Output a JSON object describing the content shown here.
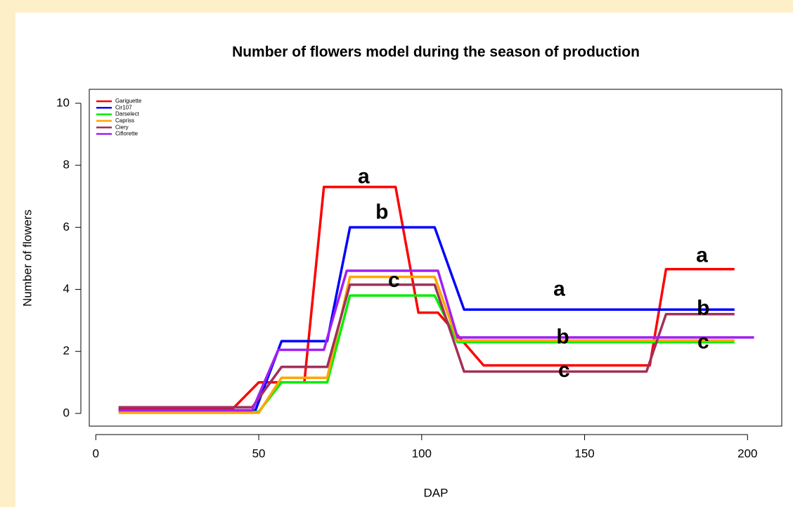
{
  "chart_data": {
    "type": "line",
    "title": "Number of flowers model during the season of production",
    "x_label": "DAP",
    "y_label": "Number of flowers",
    "xlim": [
      -2,
      210.5
    ],
    "ylim": [
      -0.41,
      10.45
    ],
    "xticks": [
      0,
      50,
      100,
      150,
      200
    ],
    "yticks": [
      0,
      2,
      4,
      6,
      8,
      10
    ],
    "legend": "top-left",
    "series": [
      {
        "name": "Gariguette",
        "color": "#ff0000",
        "x": [
          7,
          42,
          50,
          64,
          70,
          92,
          99,
          105,
          119,
          170,
          175,
          196
        ],
        "values": [
          0.15,
          0.15,
          1.0,
          1.0,
          7.3,
          7.3,
          3.25,
          3.25,
          1.55,
          1.55,
          4.65,
          4.65
        ]
      },
      {
        "name": "Cir107",
        "color": "#0000ff",
        "x": [
          7,
          49,
          57,
          71,
          78,
          104,
          113,
          196
        ],
        "values": [
          0.1,
          0.1,
          2.33,
          2.33,
          6.0,
          6.0,
          3.35,
          3.35
        ]
      },
      {
        "name": "Darselect",
        "color": "#00ee00",
        "x": [
          7,
          50,
          57,
          71,
          78,
          104,
          111,
          196
        ],
        "values": [
          0.05,
          0.05,
          1.0,
          1.0,
          3.8,
          3.8,
          2.3,
          2.3
        ]
      },
      {
        "name": "Capriss",
        "color": "#ffa500",
        "x": [
          7,
          50,
          57,
          71,
          78,
          104,
          111,
          196
        ],
        "values": [
          0.02,
          0.02,
          1.15,
          1.15,
          4.4,
          4.4,
          2.35,
          2.35
        ]
      },
      {
        "name": "Ciery",
        "color": "#a0305a",
        "x": [
          7,
          48,
          57,
          71,
          78,
          104,
          113,
          169,
          175,
          196
        ],
        "values": [
          0.2,
          0.2,
          1.5,
          1.5,
          4.15,
          4.15,
          1.35,
          1.35,
          3.2,
          3.2
        ]
      },
      {
        "name": "Ciflorette",
        "color": "#a020f0",
        "x": [
          7,
          48,
          56,
          70,
          77,
          105,
          111,
          202
        ],
        "values": [
          0.1,
          0.1,
          2.05,
          2.05,
          4.6,
          4.6,
          2.45,
          2.45
        ]
      }
    ],
    "annotations": [
      {
        "text": "a",
        "x": 82.2,
        "y": 7.6
      },
      {
        "text": "b",
        "x": 87.8,
        "y": 6.46
      },
      {
        "text": "c",
        "x": 91.5,
        "y": 4.26
      },
      {
        "text": "a",
        "x": 186,
        "y": 5.06
      },
      {
        "text": "a",
        "x": 142.2,
        "y": 3.97
      },
      {
        "text": "b",
        "x": 186.4,
        "y": 3.36
      },
      {
        "text": "b",
        "x": 143.3,
        "y": 2.43
      },
      {
        "text": "c",
        "x": 186.4,
        "y": 2.27
      },
      {
        "text": "c",
        "x": 143.7,
        "y": 1.36
      }
    ]
  }
}
